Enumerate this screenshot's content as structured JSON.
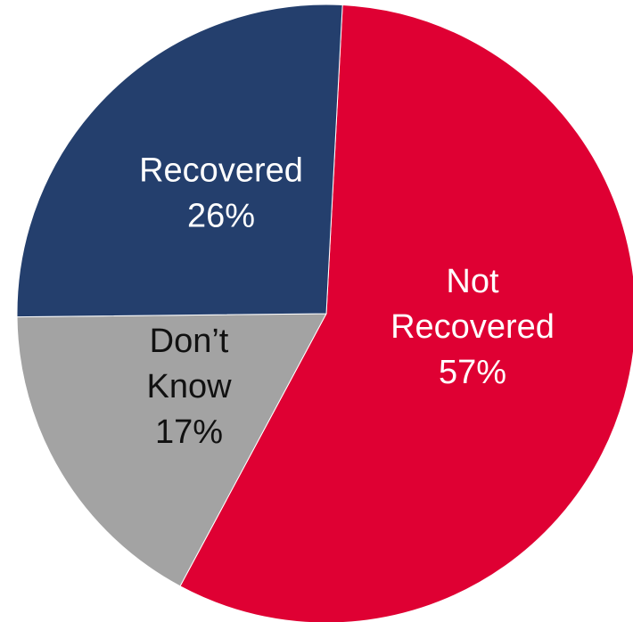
{
  "chart_data": {
    "type": "pie",
    "title": "",
    "slices": [
      {
        "label": "Not Recovered",
        "label_lines": [
          "Not",
          "Recovered",
          "57%"
        ],
        "value": 57,
        "percent_label": "57%",
        "color": "#df0033",
        "text_color": "#ffffff"
      },
      {
        "label": "Don’t Know",
        "label_lines": [
          "Don’t",
          "Know",
          "17%"
        ],
        "value": 17,
        "percent_label": "17%",
        "color": "#a3a3a3",
        "text_color": "#111111"
      },
      {
        "label": "Recovered",
        "label_lines": [
          "Recovered",
          "26%"
        ],
        "value": 26,
        "percent_label": "26%",
        "color": "#243f6d",
        "text_color": "#ffffff"
      }
    ],
    "start_angle_deg": 3,
    "direction": "clockwise",
    "legend": "none",
    "labels": "inside"
  }
}
